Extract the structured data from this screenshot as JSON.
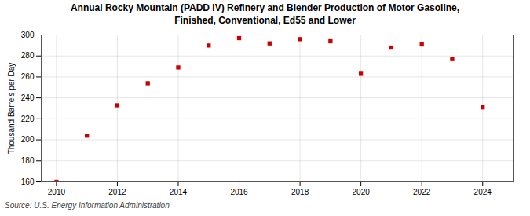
{
  "chart_data": {
    "type": "scatter",
    "title": "Annual Rocky Mountain (PADD IV) Refinery and Blender Production of Motor Gasoline,\nFinished, Conventional, Ed55 and Lower",
    "ylabel": "Thousand Barrels per Day",
    "annotations": [
      "Source: U.S. Energy Information Administration"
    ],
    "x": [
      2010,
      2011,
      2012,
      2013,
      2014,
      2015,
      2016,
      2017,
      2018,
      2019,
      2020,
      2021,
      2022,
      2023,
      2024
    ],
    "values": [
      160.0,
      204.0,
      233.0,
      254.0,
      269.0,
      290.0,
      297.0,
      292.0,
      296.0,
      294.0,
      263.0,
      288.0,
      291.0,
      277.0,
      231.0
    ],
    "color": "#cc0000",
    "marker": "square",
    "xlim": [
      2009.5,
      2025
    ],
    "xticks": [
      2010,
      2012,
      2014,
      2016,
      2018,
      2020,
      2022,
      2024
    ],
    "ylim": [
      160,
      300
    ],
    "yticks": [
      160,
      180,
      200,
      220,
      240,
      260,
      280,
      300
    ],
    "grid": true
  }
}
